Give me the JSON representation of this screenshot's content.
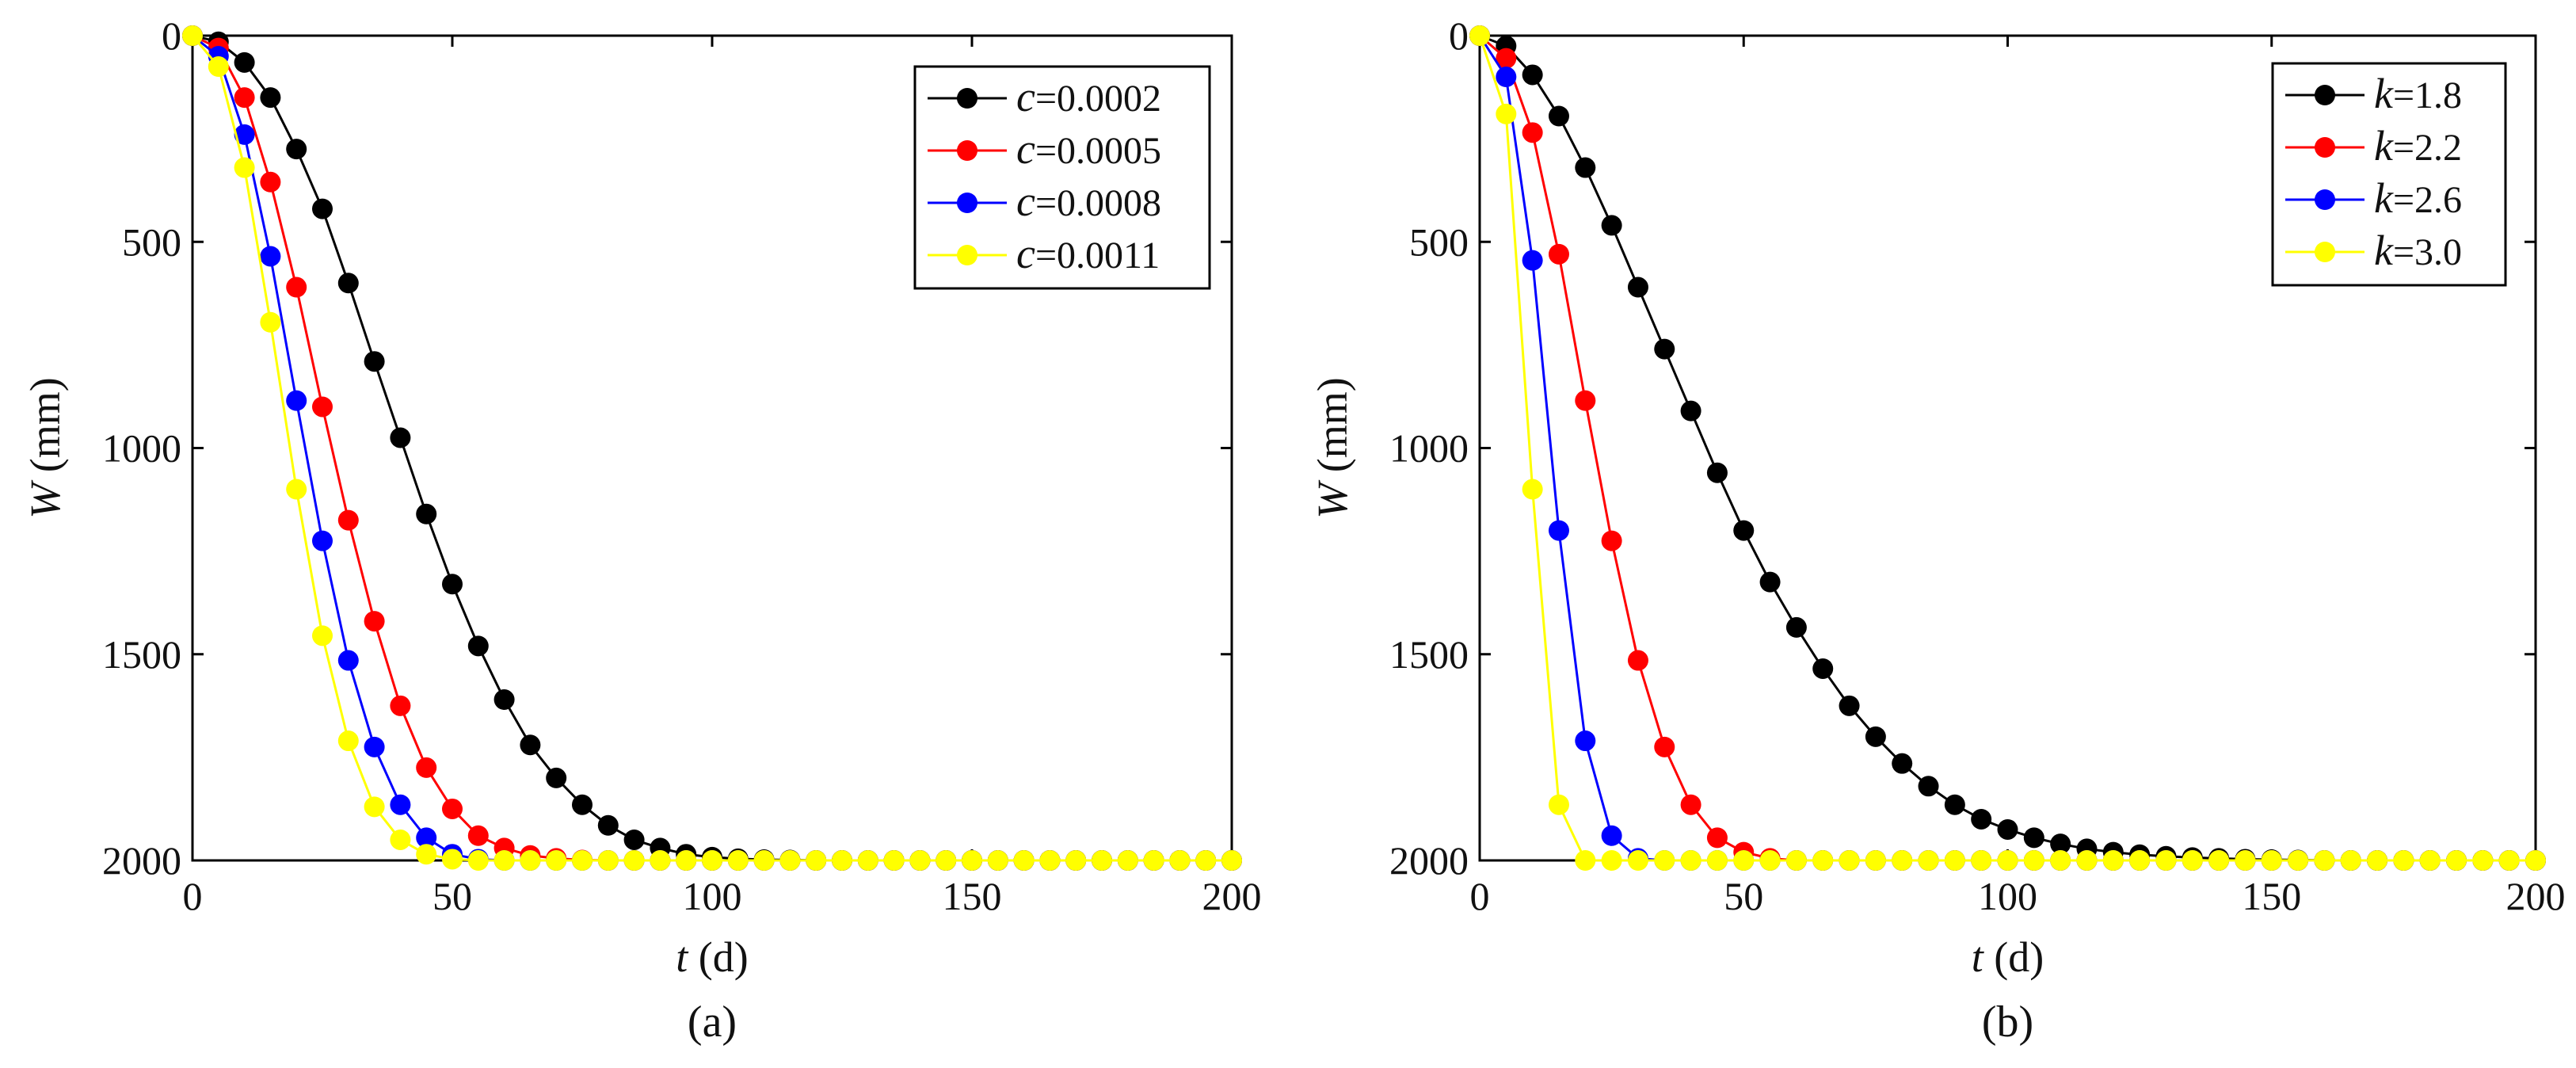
{
  "chart_data": [
    {
      "type": "line",
      "caption": "(a)",
      "xlabel_var": "t",
      "xlabel_unit": " (d)",
      "ylabel_var": "W",
      "ylabel_unit": " (mm)",
      "xlim": [
        0,
        200
      ],
      "ylim": [
        0,
        2000
      ],
      "y_reversed": true,
      "xticks": [
        "0",
        "50",
        "100",
        "150",
        "200"
      ],
      "yticks": [
        "0",
        "500",
        "1000",
        "1500",
        "2000"
      ],
      "legend_position": "top-right",
      "legend_var": "c",
      "x": [
        0,
        5,
        10,
        15,
        20,
        25,
        30,
        35,
        40,
        45,
        50,
        55,
        60,
        65,
        70,
        75,
        80,
        85,
        90,
        95,
        100,
        105,
        110,
        115,
        120,
        125,
        130,
        135,
        140,
        145,
        150,
        155,
        160,
        165,
        170,
        175,
        180,
        185,
        190,
        195,
        200
      ],
      "series": [
        {
          "name": "=0.0002",
          "color": "#000000",
          "values": [
            0,
            15,
            65,
            150,
            275,
            420,
            600,
            790,
            975,
            1160,
            1330,
            1480,
            1610,
            1720,
            1800,
            1865,
            1915,
            1950,
            1970,
            1985,
            1992,
            1996,
            1998,
            1999,
            2000,
            2000,
            2000,
            2000,
            2000,
            2000,
            2000,
            2000,
            2000,
            2000,
            2000,
            2000,
            2000,
            2000,
            2000,
            2000,
            2000
          ]
        },
        {
          "name": "=0.0005",
          "color": "#ff0000",
          "values": [
            0,
            30,
            150,
            355,
            610,
            900,
            1175,
            1420,
            1625,
            1775,
            1875,
            1940,
            1970,
            1988,
            1995,
            1999,
            2000,
            2000,
            2000,
            2000,
            2000,
            2000,
            2000,
            2000,
            2000,
            2000,
            2000,
            2000,
            2000,
            2000,
            2000,
            2000,
            2000,
            2000,
            2000,
            2000,
            2000,
            2000,
            2000,
            2000,
            2000
          ]
        },
        {
          "name": "=0.0008",
          "color": "#0000ff",
          "values": [
            0,
            50,
            240,
            535,
            885,
            1225,
            1515,
            1725,
            1865,
            1945,
            1985,
            1997,
            2000,
            2000,
            2000,
            2000,
            2000,
            2000,
            2000,
            2000,
            2000,
            2000,
            2000,
            2000,
            2000,
            2000,
            2000,
            2000,
            2000,
            2000,
            2000,
            2000,
            2000,
            2000,
            2000,
            2000,
            2000,
            2000,
            2000,
            2000,
            2000
          ]
        },
        {
          "name": "=0.0011",
          "color": "#ffff00",
          "values": [
            0,
            75,
            320,
            695,
            1100,
            1455,
            1710,
            1870,
            1950,
            1985,
            1997,
            2000,
            2000,
            2000,
            2000,
            2000,
            2000,
            2000,
            2000,
            2000,
            2000,
            2000,
            2000,
            2000,
            2000,
            2000,
            2000,
            2000,
            2000,
            2000,
            2000,
            2000,
            2000,
            2000,
            2000,
            2000,
            2000,
            2000,
            2000,
            2000,
            2000
          ]
        }
      ]
    },
    {
      "type": "line",
      "caption": "(b)",
      "xlabel_var": "t",
      "xlabel_unit": " (d)",
      "ylabel_var": "W",
      "ylabel_unit": " (mm)",
      "xlim": [
        0,
        200
      ],
      "ylim": [
        0,
        2000
      ],
      "y_reversed": true,
      "xticks": [
        "0",
        "50",
        "100",
        "150",
        "200"
      ],
      "yticks": [
        "0",
        "500",
        "1000",
        "1500",
        "2000"
      ],
      "legend_position": "top-right",
      "legend_var": "k",
      "x": [
        0,
        5,
        10,
        15,
        20,
        25,
        30,
        35,
        40,
        45,
        50,
        55,
        60,
        65,
        70,
        75,
        80,
        85,
        90,
        95,
        100,
        105,
        110,
        115,
        120,
        125,
        130,
        135,
        140,
        145,
        150,
        155,
        160,
        165,
        170,
        175,
        180,
        185,
        190,
        195,
        200
      ],
      "series": [
        {
          "name": "=1.8",
          "color": "#000000",
          "values": [
            0,
            25,
            95,
            195,
            320,
            460,
            610,
            760,
            910,
            1060,
            1200,
            1325,
            1435,
            1535,
            1625,
            1700,
            1765,
            1820,
            1865,
            1900,
            1925,
            1945,
            1960,
            1972,
            1980,
            1986,
            1990,
            1993,
            1995,
            1997,
            1998,
            1999,
            2000,
            2000,
            2000,
            2000,
            2000,
            2000,
            2000,
            2000,
            2000
          ]
        },
        {
          "name": "=2.2",
          "color": "#ff0000",
          "values": [
            0,
            55,
            235,
            530,
            885,
            1225,
            1515,
            1725,
            1865,
            1945,
            1980,
            1995,
            2000,
            2000,
            2000,
            2000,
            2000,
            2000,
            2000,
            2000,
            2000,
            2000,
            2000,
            2000,
            2000,
            2000,
            2000,
            2000,
            2000,
            2000,
            2000,
            2000,
            2000,
            2000,
            2000,
            2000,
            2000,
            2000,
            2000,
            2000,
            2000
          ]
        },
        {
          "name": "=2.6",
          "color": "#0000ff",
          "values": [
            0,
            100,
            545,
            1200,
            1710,
            1940,
            1995,
            2000,
            2000,
            2000,
            2000,
            2000,
            2000,
            2000,
            2000,
            2000,
            2000,
            2000,
            2000,
            2000,
            2000,
            2000,
            2000,
            2000,
            2000,
            2000,
            2000,
            2000,
            2000,
            2000,
            2000,
            2000,
            2000,
            2000,
            2000,
            2000,
            2000,
            2000,
            2000,
            2000,
            2000
          ]
        },
        {
          "name": "=3.0",
          "color": "#ffff00",
          "values": [
            0,
            190,
            1100,
            1865,
            2000,
            2000,
            2000,
            2000,
            2000,
            2000,
            2000,
            2000,
            2000,
            2000,
            2000,
            2000,
            2000,
            2000,
            2000,
            2000,
            2000,
            2000,
            2000,
            2000,
            2000,
            2000,
            2000,
            2000,
            2000,
            2000,
            2000,
            2000,
            2000,
            2000,
            2000,
            2000,
            2000,
            2000,
            2000,
            2000,
            2000
          ]
        }
      ]
    }
  ]
}
